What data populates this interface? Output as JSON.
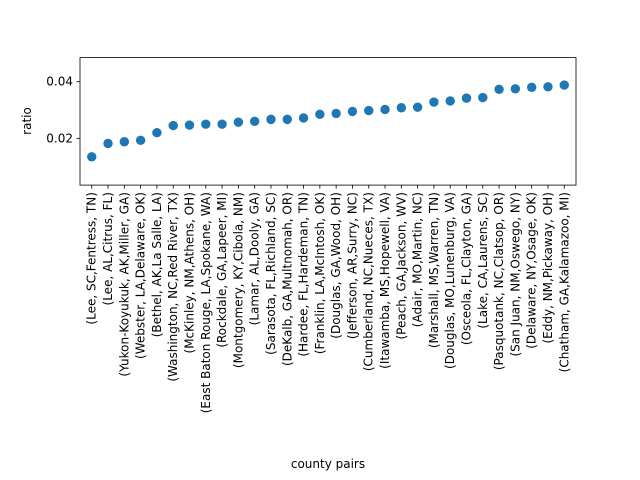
{
  "chart_data": {
    "type": "scatter",
    "xlabel": "county pairs",
    "ylabel": "ratio",
    "ylim": [
      0.0035,
      0.0485
    ],
    "yticks": [
      0.02,
      0.04
    ],
    "ytick_labels": [
      "0.02",
      "0.04"
    ],
    "grid": false,
    "marker_color": "#1f77b4",
    "categories": [
      "(Lee, SC,Fentress, TN)",
      "(Lee, AL,Citrus, FL)",
      "(Yukon-Koyukuk, AK,Miller, GA)",
      "(Webster, LA,Delaware, OK)",
      "(Bethel, AK,La Salle, LA)",
      "(Washington, NC,Red River, TX)",
      "(McKinley, NM,Athens, OH)",
      "(East Baton Rouge, LA,Spokane, WA)",
      "(Rockdale, GA,Lapeer, MI)",
      "(Montgomery, KY,Cibola, NM)",
      "(Lamar, AL,Dooly, GA)",
      "(Sarasota, FL,Richland, SC)",
      "(DeKalb, GA,Multnomah, OR)",
      "(Hardee, FL,Hardeman, TN)",
      "(Franklin, LA,McIntosh, OK)",
      "(Douglas, GA,Wood, OH)",
      "(Jefferson, AR,Surry, NC)",
      "(Cumberland, NC,Nueces, TX)",
      "(Itawamba, MS,Hopewell, VA)",
      "(Peach, GA,Jackson, WV)",
      "(Adair, MO,Martin, NC)",
      "(Marshall, MS,Warren, TN)",
      "(Douglas, MO,Lunenburg, VA)",
      "(Osceola, FL,Clayton, GA)",
      "(Lake, CA,Laurens, SC)",
      "(Pasquotank, NC,Clatsop, OR)",
      "(San Juan, NM,Oswego, NY)",
      "(Delaware, NY,Osage, OK)",
      "(Eddy, NM,Pickaway, OH)",
      "(Chatham, GA,Kalamazoo, MI)"
    ],
    "values": [
      0.0135,
      0.0182,
      0.0188,
      0.0193,
      0.022,
      0.0245,
      0.0247,
      0.025,
      0.025,
      0.0257,
      0.026,
      0.0267,
      0.0267,
      0.0272,
      0.0285,
      0.0288,
      0.0295,
      0.0298,
      0.0302,
      0.0308,
      0.031,
      0.0328,
      0.0332,
      0.0342,
      0.0344,
      0.0373,
      0.0375,
      0.038,
      0.0382,
      0.0388
    ]
  }
}
